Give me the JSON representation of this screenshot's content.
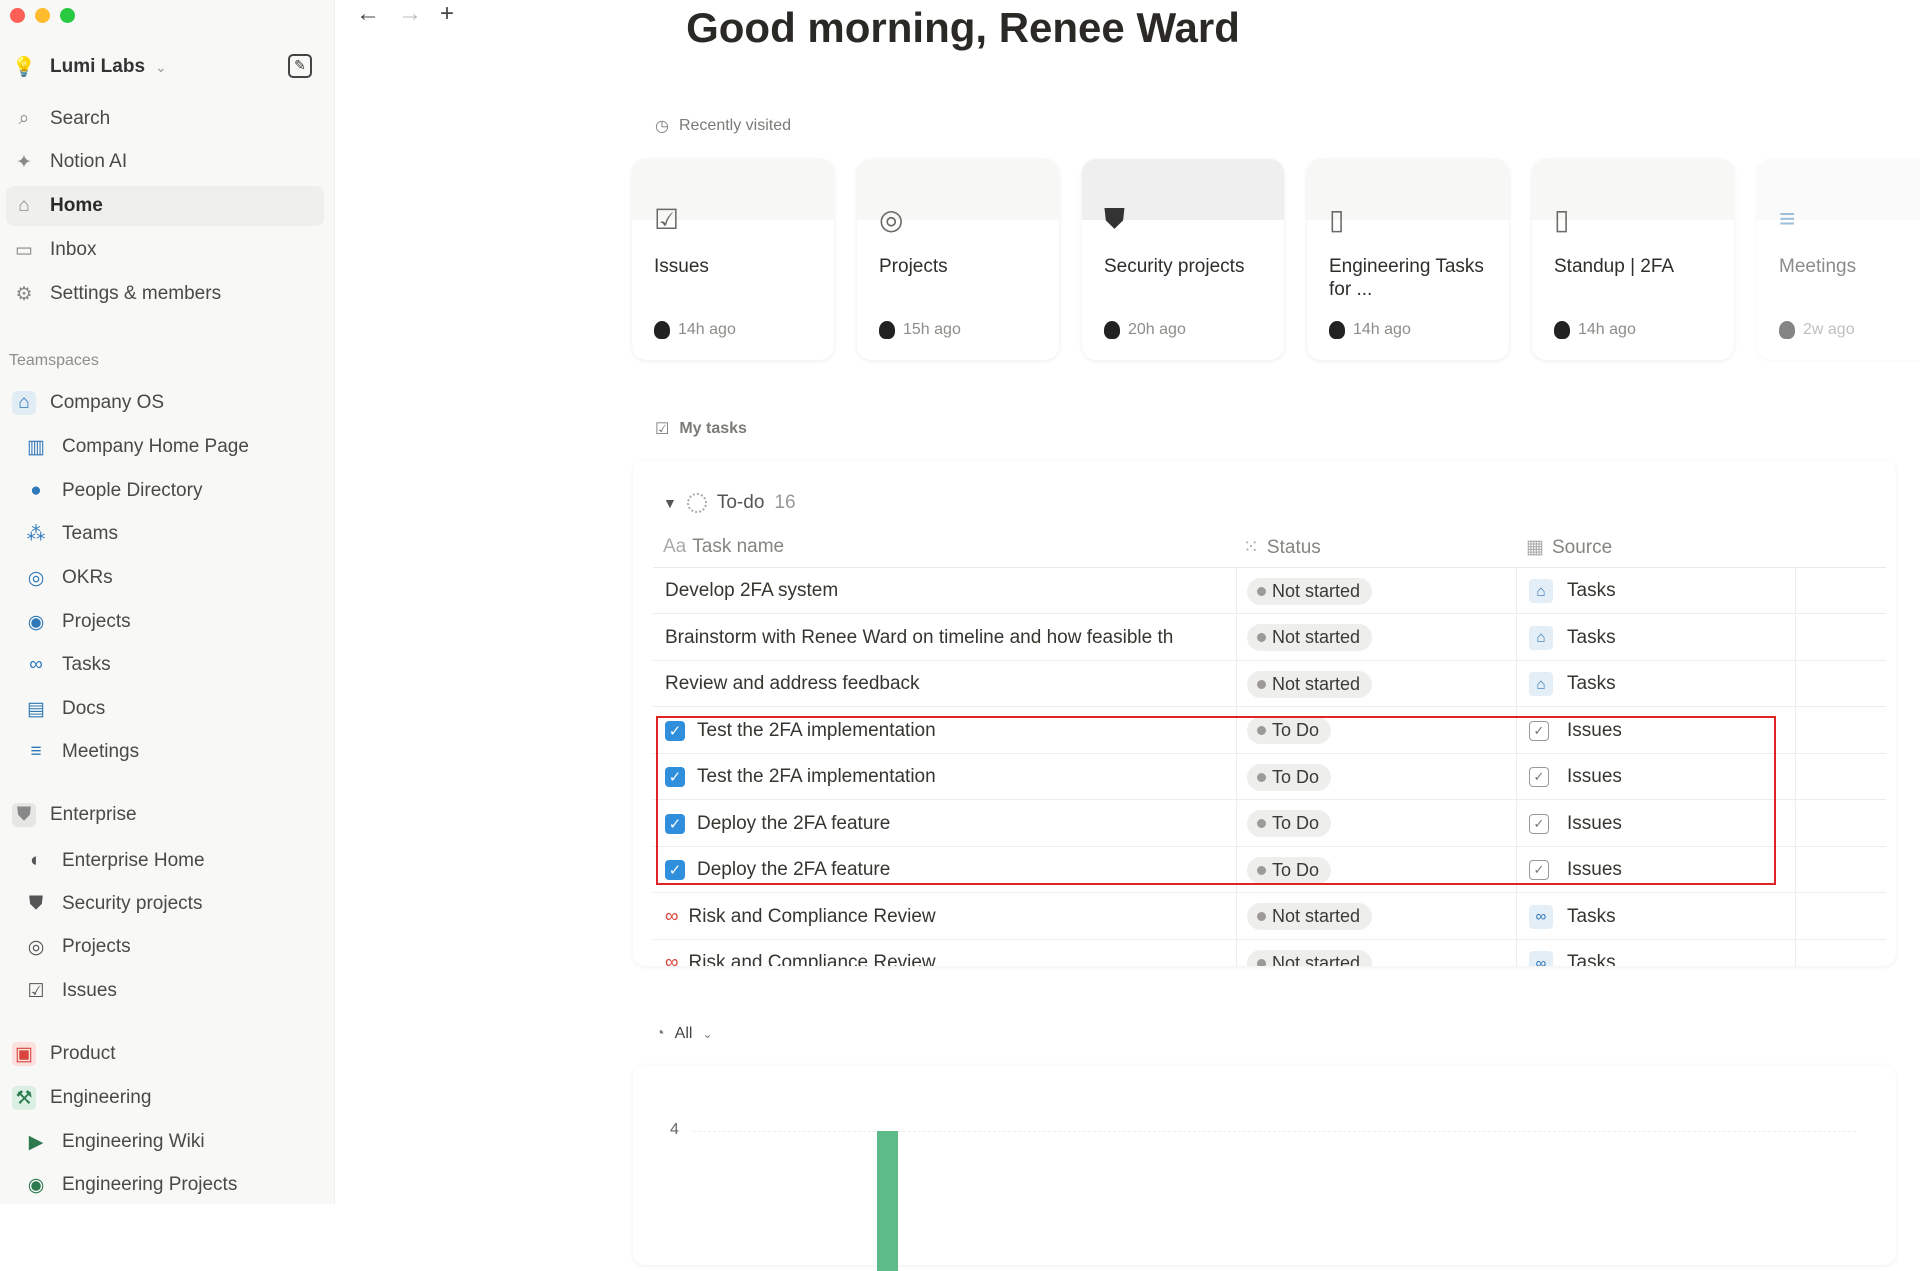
{
  "sidebar": {
    "workspace": "Lumi Labs",
    "nav": [
      {
        "label": "Search",
        "icon": "search-icon"
      },
      {
        "label": "Notion AI",
        "icon": "sparkle-icon"
      },
      {
        "label": "Home",
        "icon": "home-icon",
        "active": true
      },
      {
        "label": "Inbox",
        "icon": "inbox-icon"
      },
      {
        "label": "Settings & members",
        "icon": "gear-icon"
      }
    ],
    "teamspaces_heading": "Teamspaces",
    "items": [
      {
        "label": "Company OS",
        "type": "team",
        "icon": "house-icon",
        "y": 403
      },
      {
        "label": "Company Home Page",
        "type": "sub",
        "icon": "book-icon",
        "y": 447
      },
      {
        "label": "People Directory",
        "type": "sub",
        "icon": "person-icon",
        "y": 491
      },
      {
        "label": "Teams",
        "type": "sub",
        "icon": "people-icon",
        "y": 534
      },
      {
        "label": "OKRs",
        "type": "sub",
        "icon": "target-icon",
        "y": 578
      },
      {
        "label": "Projects",
        "type": "sub",
        "icon": "projects-icon",
        "y": 622
      },
      {
        "label": "Tasks",
        "type": "sub",
        "icon": "binoculars-icon",
        "y": 665
      },
      {
        "label": "Docs",
        "type": "sub",
        "icon": "docs-icon",
        "y": 709
      },
      {
        "label": "Meetings",
        "type": "sub",
        "icon": "meetings-icon",
        "y": 752
      },
      {
        "label": "Enterprise",
        "type": "team",
        "icon": "shield-icon",
        "y": 815
      },
      {
        "label": "Enterprise Home",
        "type": "sub",
        "icon": "compass-icon",
        "y": 861
      },
      {
        "label": "Security projects",
        "type": "sub",
        "icon": "shield-icon",
        "y": 904
      },
      {
        "label": "Projects",
        "type": "sub",
        "icon": "target-icon",
        "y": 947
      },
      {
        "label": "Issues",
        "type": "sub",
        "icon": "checkbox-icon",
        "y": 991
      },
      {
        "label": "Product",
        "type": "team",
        "icon": "clipboard-icon",
        "y": 1054
      },
      {
        "label": "Engineering",
        "type": "team",
        "icon": "hammer-icon",
        "y": 1098
      },
      {
        "label": "Engineering Wiki",
        "type": "sub",
        "icon": "terminal-icon",
        "y": 1142
      },
      {
        "label": "Engineering Projects",
        "type": "sub",
        "icon": "projects-icon",
        "y": 1185
      }
    ]
  },
  "header": {
    "greeting": "Good morning, Renee Ward"
  },
  "recent": {
    "label": "Recently visited",
    "cards": [
      {
        "title": "Issues",
        "time": "14h ago",
        "icon": "checkbox-icon"
      },
      {
        "title": "Projects",
        "time": "15h ago",
        "icon": "target-icon"
      },
      {
        "title": "Security projects",
        "time": "20h ago",
        "icon": "shield-icon"
      },
      {
        "title": "Engineering Tasks for ...",
        "time": "14h ago",
        "icon": "document-icon"
      },
      {
        "title": "Standup | 2FA",
        "time": "14h ago",
        "icon": "document-icon"
      },
      {
        "title": "Meetings",
        "time": "2w ago",
        "icon": "meetings-icon"
      }
    ]
  },
  "tasks": {
    "label": "My tasks",
    "group": "To-do",
    "count": "16",
    "columns": {
      "name": "Task name",
      "status": "Status",
      "source": "Source"
    },
    "rows": [
      {
        "name": "Develop 2FA system",
        "status": "Not started",
        "source": "Tasks",
        "check": false
      },
      {
        "name": "Brainstorm with Renee Ward on timeline and how feasible th",
        "status": "Not started",
        "source": "Tasks",
        "check": false
      },
      {
        "name": "Review and address feedback",
        "status": "Not started",
        "source": "Tasks",
        "check": false
      },
      {
        "name": "Test the 2FA implementation",
        "status": "To Do",
        "source": "Issues",
        "check": true
      },
      {
        "name": "Test the 2FA implementation",
        "status": "To Do",
        "source": "Issues",
        "check": true
      },
      {
        "name": "Deploy the 2FA feature",
        "status": "To Do",
        "source": "Issues",
        "check": true
      },
      {
        "name": "Deploy the 2FA feature",
        "status": "To Do",
        "source": "Issues",
        "check": true
      },
      {
        "name": "Risk and Compliance Review",
        "status": "Not started",
        "source": "Tasks",
        "check": false,
        "binoc": true
      },
      {
        "name": "Risk and Compliance Review",
        "status": "Not started",
        "source": "Tasks",
        "check": false,
        "binoc": true
      }
    ]
  },
  "chart_filter": "All",
  "chart_data": {
    "type": "bar",
    "y_ticks": [
      "4"
    ],
    "values": [
      4
    ],
    "bar_color": "#5dbb8a"
  },
  "colors": {
    "accent": "#2f8fdd",
    "highlight": "#e02424"
  }
}
